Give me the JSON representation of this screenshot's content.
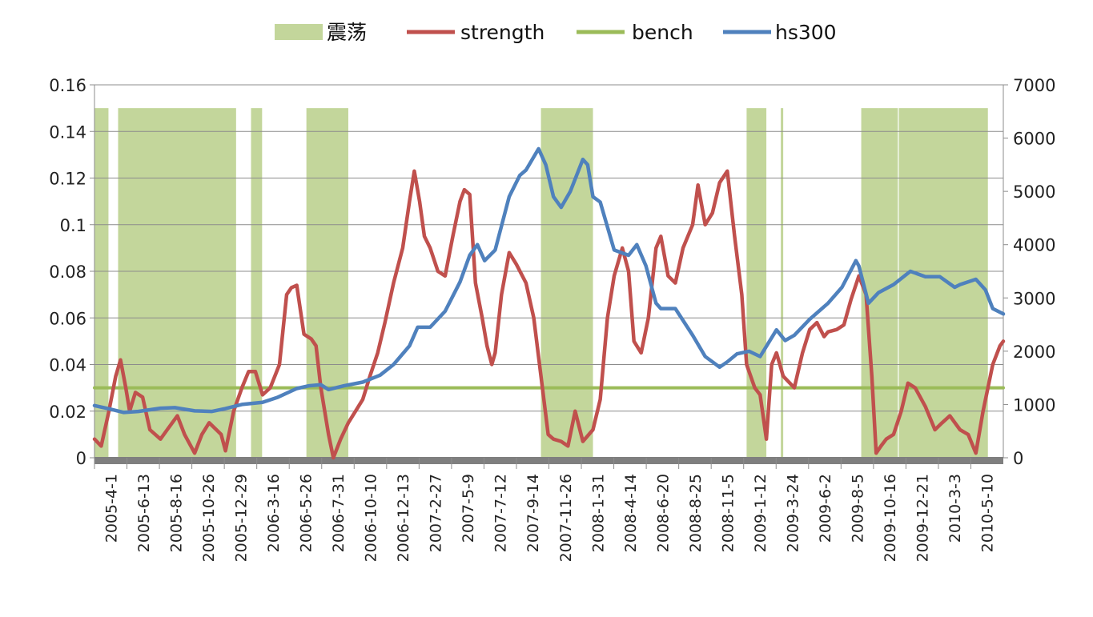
{
  "chart_data": {
    "type": "line",
    "legend": {
      "placement": "top",
      "entries": [
        {
          "label": "震荡",
          "kind": "area",
          "color": "#c3d69b"
        },
        {
          "label": "strength",
          "kind": "line",
          "color": "#c0504d"
        },
        {
          "label": "bench",
          "kind": "line",
          "color": "#9bbb59"
        },
        {
          "label": "hs300",
          "kind": "line",
          "color": "#4f81bd"
        }
      ]
    },
    "x_tick_labels": [
      "2005-4-1",
      "2005-6-13",
      "2005-8-16",
      "2005-10-26",
      "2005-12-29",
      "2006-3-16",
      "2006-5-26",
      "2006-7-31",
      "2006-10-10",
      "2006-12-13",
      "2007-2-27",
      "2007-5-9",
      "2007-7-12",
      "2007-9-14",
      "2007-11-26",
      "2008-1-31",
      "2008-4-14",
      "2008-6-20",
      "2008-8-25",
      "2008-11-5",
      "2009-1-12",
      "2009-3-24",
      "2009-6-2",
      "2009-8-5",
      "2009-10-16",
      "2009-12-21",
      "2010-3-3",
      "2010-5-10"
    ],
    "y_left": {
      "min": 0,
      "max": 0.16,
      "ticks": [
        "0",
        "0.02",
        "0.04",
        "0.06",
        "0.08",
        "0.1",
        "0.12",
        "0.14",
        "0.16"
      ]
    },
    "y_right": {
      "min": 0,
      "max": 7000,
      "ticks": [
        "0",
        "1000",
        "2000",
        "3000",
        "4000",
        "5000",
        "6000",
        "7000"
      ]
    },
    "grid": true,
    "oscillation_band_height": 0.15,
    "oscillation_periods": [
      [
        "2005-04-01",
        "2005-04-30"
      ],
      [
        "2005-05-20",
        "2006-01-20"
      ],
      [
        "2006-02-20",
        "2006-03-15"
      ],
      [
        "2006-06-15",
        "2006-09-10"
      ],
      [
        "2007-10-15",
        "2008-01-31"
      ],
      [
        "2008-12-15",
        "2009-01-25"
      ],
      [
        "2009-02-24",
        "2009-03-01"
      ],
      [
        "2009-08-10",
        "2009-10-25"
      ],
      [
        "2009-10-27",
        "2010-04-30"
      ]
    ],
    "series": [
      {
        "name": "strength",
        "axis": "left",
        "color": "#c0504d",
        "points": [
          [
            "2005-04-01",
            0.008
          ],
          [
            "2005-04-15",
            0.005
          ],
          [
            "2005-05-01",
            0.02
          ],
          [
            "2005-05-15",
            0.035
          ],
          [
            "2005-05-25",
            0.042
          ],
          [
            "2005-06-05",
            0.03
          ],
          [
            "2005-06-13",
            0.02
          ],
          [
            "2005-06-25",
            0.028
          ],
          [
            "2005-07-10",
            0.026
          ],
          [
            "2005-07-25",
            0.012
          ],
          [
            "2005-08-16",
            0.008
          ],
          [
            "2005-08-30",
            0.012
          ],
          [
            "2005-09-20",
            0.018
          ],
          [
            "2005-10-05",
            0.01
          ],
          [
            "2005-10-26",
            0.002
          ],
          [
            "2005-11-10",
            0.01
          ],
          [
            "2005-11-25",
            0.015
          ],
          [
            "2005-12-10",
            0.012
          ],
          [
            "2005-12-20",
            0.01
          ],
          [
            "2005-12-29",
            0.003
          ],
          [
            "2006-01-15",
            0.02
          ],
          [
            "2006-02-01",
            0.03
          ],
          [
            "2006-02-15",
            0.037
          ],
          [
            "2006-03-01",
            0.037
          ],
          [
            "2006-03-16",
            0.027
          ],
          [
            "2006-04-01",
            0.03
          ],
          [
            "2006-04-20",
            0.04
          ],
          [
            "2006-05-05",
            0.07
          ],
          [
            "2006-05-15",
            0.073
          ],
          [
            "2006-05-26",
            0.074
          ],
          [
            "2006-06-10",
            0.053
          ],
          [
            "2006-06-25",
            0.051
          ],
          [
            "2006-07-05",
            0.048
          ],
          [
            "2006-07-15",
            0.03
          ],
          [
            "2006-07-31",
            0.01
          ],
          [
            "2006-08-10",
            0.0
          ],
          [
            "2006-08-25",
            0.008
          ],
          [
            "2006-09-10",
            0.015
          ],
          [
            "2006-09-25",
            0.02
          ],
          [
            "2006-10-10",
            0.025
          ],
          [
            "2006-10-25",
            0.035
          ],
          [
            "2006-11-10",
            0.045
          ],
          [
            "2006-11-25",
            0.058
          ],
          [
            "2006-12-13",
            0.075
          ],
          [
            "2007-01-01",
            0.09
          ],
          [
            "2007-01-15",
            0.11
          ],
          [
            "2007-01-25",
            0.123
          ],
          [
            "2007-02-05",
            0.11
          ],
          [
            "2007-02-15",
            0.095
          ],
          [
            "2007-02-27",
            0.09
          ],
          [
            "2007-03-15",
            0.08
          ],
          [
            "2007-03-30",
            0.078
          ],
          [
            "2007-04-15",
            0.095
          ],
          [
            "2007-04-30",
            0.11
          ],
          [
            "2007-05-09",
            0.115
          ],
          [
            "2007-05-20",
            0.113
          ],
          [
            "2007-06-01",
            0.075
          ],
          [
            "2007-06-15",
            0.06
          ],
          [
            "2007-06-25",
            0.048
          ],
          [
            "2007-07-05",
            0.04
          ],
          [
            "2007-07-12",
            0.045
          ],
          [
            "2007-07-25",
            0.07
          ],
          [
            "2007-08-10",
            0.088
          ],
          [
            "2007-08-25",
            0.083
          ],
          [
            "2007-09-14",
            0.075
          ],
          [
            "2007-09-30",
            0.06
          ],
          [
            "2007-10-15",
            0.035
          ],
          [
            "2007-10-30",
            0.01
          ],
          [
            "2007-11-10",
            0.008
          ],
          [
            "2007-11-26",
            0.007
          ],
          [
            "2007-12-10",
            0.005
          ],
          [
            "2007-12-25",
            0.02
          ],
          [
            "2008-01-10",
            0.007
          ],
          [
            "2008-01-31",
            0.012
          ],
          [
            "2008-02-15",
            0.025
          ],
          [
            "2008-03-01",
            0.06
          ],
          [
            "2008-03-15",
            0.078
          ],
          [
            "2008-04-01",
            0.09
          ],
          [
            "2008-04-14",
            0.08
          ],
          [
            "2008-04-25",
            0.05
          ],
          [
            "2008-05-10",
            0.045
          ],
          [
            "2008-05-25",
            0.06
          ],
          [
            "2008-06-10",
            0.09
          ],
          [
            "2008-06-20",
            0.095
          ],
          [
            "2008-07-05",
            0.078
          ],
          [
            "2008-07-20",
            0.075
          ],
          [
            "2008-08-05",
            0.09
          ],
          [
            "2008-08-25",
            0.1
          ],
          [
            "2008-09-05",
            0.117
          ],
          [
            "2008-09-20",
            0.1
          ],
          [
            "2008-10-05",
            0.105
          ],
          [
            "2008-10-20",
            0.118
          ],
          [
            "2008-11-05",
            0.123
          ],
          [
            "2008-11-20",
            0.095
          ],
          [
            "2008-12-05",
            0.07
          ],
          [
            "2008-12-15",
            0.04
          ],
          [
            "2009-01-01",
            0.03
          ],
          [
            "2009-01-12",
            0.027
          ],
          [
            "2009-01-25",
            0.008
          ],
          [
            "2009-02-05",
            0.04
          ],
          [
            "2009-02-15",
            0.045
          ],
          [
            "2009-03-01",
            0.035
          ],
          [
            "2009-03-24",
            0.03
          ],
          [
            "2009-04-10",
            0.045
          ],
          [
            "2009-04-25",
            0.055
          ],
          [
            "2009-05-10",
            0.058
          ],
          [
            "2009-05-25",
            0.052
          ],
          [
            "2009-06-02",
            0.054
          ],
          [
            "2009-06-20",
            0.055
          ],
          [
            "2009-07-05",
            0.057
          ],
          [
            "2009-07-20",
            0.068
          ],
          [
            "2009-08-05",
            0.078
          ],
          [
            "2009-08-20",
            0.07
          ],
          [
            "2009-09-01",
            0.035
          ],
          [
            "2009-09-10",
            0.002
          ],
          [
            "2009-09-20",
            0.005
          ],
          [
            "2009-10-01",
            0.008
          ],
          [
            "2009-10-16",
            0.01
          ],
          [
            "2009-11-01",
            0.02
          ],
          [
            "2009-11-15",
            0.032
          ],
          [
            "2009-11-30",
            0.03
          ],
          [
            "2009-12-21",
            0.022
          ],
          [
            "2010-01-10",
            0.012
          ],
          [
            "2010-01-25",
            0.015
          ],
          [
            "2010-02-10",
            0.018
          ],
          [
            "2010-03-03",
            0.012
          ],
          [
            "2010-03-20",
            0.01
          ],
          [
            "2010-04-05",
            0.002
          ],
          [
            "2010-04-20",
            0.02
          ],
          [
            "2010-05-05",
            0.035
          ],
          [
            "2010-05-10",
            0.04
          ],
          [
            "2010-05-25",
            0.048
          ],
          [
            "2010-06-01",
            0.05
          ]
        ]
      },
      {
        "name": "bench",
        "axis": "left",
        "color": "#9bbb59",
        "points": [
          [
            "2005-04-01",
            0.03
          ],
          [
            "2010-06-01",
            0.03
          ]
        ]
      },
      {
        "name": "hs300",
        "axis": "right",
        "color": "#4f81bd",
        "points": [
          [
            "2005-04-01",
            980
          ],
          [
            "2005-05-01",
            920
          ],
          [
            "2005-06-01",
            850
          ],
          [
            "2005-07-01",
            870
          ],
          [
            "2005-08-16",
            930
          ],
          [
            "2005-09-15",
            940
          ],
          [
            "2005-10-26",
            880
          ],
          [
            "2005-12-01",
            870
          ],
          [
            "2005-12-29",
            923
          ],
          [
            "2006-02-01",
            1000
          ],
          [
            "2006-03-16",
            1040
          ],
          [
            "2006-04-15",
            1130
          ],
          [
            "2006-05-26",
            1300
          ],
          [
            "2006-06-20",
            1350
          ],
          [
            "2006-07-15",
            1370
          ],
          [
            "2006-07-31",
            1280
          ],
          [
            "2006-09-01",
            1350
          ],
          [
            "2006-10-10",
            1420
          ],
          [
            "2006-11-15",
            1550
          ],
          [
            "2006-12-13",
            1750
          ],
          [
            "2007-01-15",
            2100
          ],
          [
            "2007-02-01",
            2450
          ],
          [
            "2007-02-27",
            2450
          ],
          [
            "2007-03-30",
            2750
          ],
          [
            "2007-04-30",
            3300
          ],
          [
            "2007-05-20",
            3800
          ],
          [
            "2007-06-05",
            4000
          ],
          [
            "2007-06-20",
            3700
          ],
          [
            "2007-07-12",
            3900
          ],
          [
            "2007-08-10",
            4900
          ],
          [
            "2007-09-01",
            5300
          ],
          [
            "2007-09-14",
            5400
          ],
          [
            "2007-10-10",
            5800
          ],
          [
            "2007-10-25",
            5500
          ],
          [
            "2007-11-10",
            4900
          ],
          [
            "2007-11-26",
            4700
          ],
          [
            "2007-12-15",
            5000
          ],
          [
            "2008-01-10",
            5600
          ],
          [
            "2008-01-20",
            5500
          ],
          [
            "2008-01-31",
            4900
          ],
          [
            "2008-02-15",
            4800
          ],
          [
            "2008-03-15",
            3900
          ],
          [
            "2008-04-14",
            3800
          ],
          [
            "2008-05-01",
            4000
          ],
          [
            "2008-05-20",
            3600
          ],
          [
            "2008-06-10",
            2900
          ],
          [
            "2008-06-20",
            2800
          ],
          [
            "2008-07-20",
            2800
          ],
          [
            "2008-08-25",
            2300
          ],
          [
            "2008-09-20",
            1900
          ],
          [
            "2008-10-20",
            1700
          ],
          [
            "2008-11-05",
            1800
          ],
          [
            "2008-11-25",
            1950
          ],
          [
            "2008-12-20",
            2000
          ],
          [
            "2009-01-12",
            1900
          ],
          [
            "2009-02-15",
            2400
          ],
          [
            "2009-03-05",
            2200
          ],
          [
            "2009-03-24",
            2300
          ],
          [
            "2009-04-25",
            2600
          ],
          [
            "2009-06-02",
            2900
          ],
          [
            "2009-07-01",
            3200
          ],
          [
            "2009-07-30",
            3700
          ],
          [
            "2009-08-05",
            3600
          ],
          [
            "2009-08-25",
            2900
          ],
          [
            "2009-09-15",
            3100
          ],
          [
            "2009-10-16",
            3250
          ],
          [
            "2009-11-20",
            3500
          ],
          [
            "2009-12-21",
            3400
          ],
          [
            "2010-01-20",
            3400
          ],
          [
            "2010-02-20",
            3200
          ],
          [
            "2010-03-03",
            3250
          ],
          [
            "2010-04-05",
            3350
          ],
          [
            "2010-04-25",
            3150
          ],
          [
            "2010-05-10",
            2800
          ],
          [
            "2010-06-01",
            2700
          ]
        ]
      }
    ]
  }
}
